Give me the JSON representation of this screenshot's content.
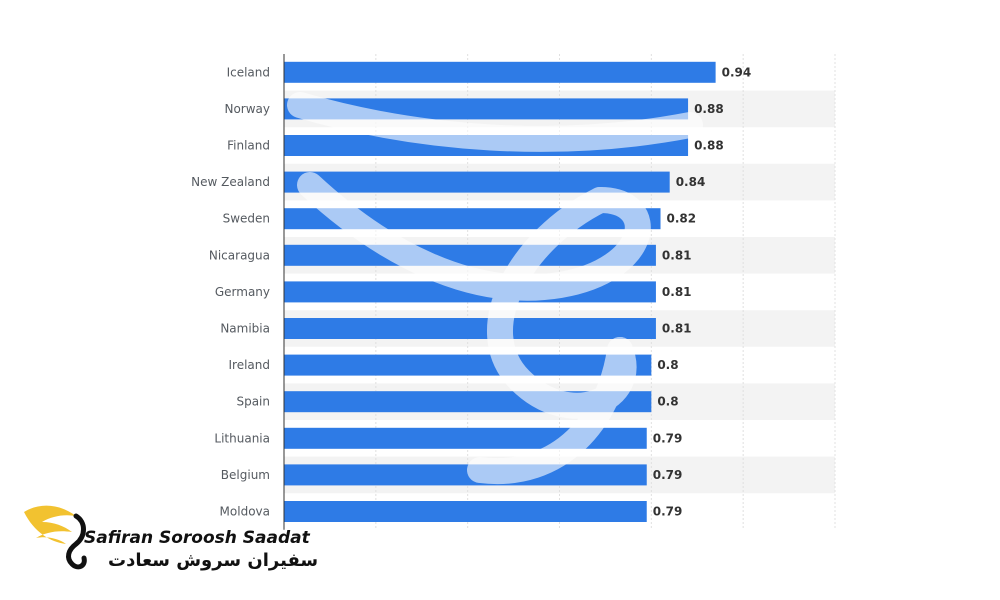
{
  "chart_data": {
    "type": "bar",
    "orientation": "horizontal",
    "categories": [
      "Iceland",
      "Norway",
      "Finland",
      "New Zealand",
      "Sweden",
      "Nicaragua",
      "Germany",
      "Namibia",
      "Ireland",
      "Spain",
      "Lithuania",
      "Belgium",
      "Moldova"
    ],
    "values": [
      0.94,
      0.88,
      0.88,
      0.84,
      0.82,
      0.81,
      0.81,
      0.81,
      0.8,
      0.8,
      0.79,
      0.79,
      0.79
    ],
    "value_labels": [
      "0.94",
      "0.88",
      "0.88",
      "0.84",
      "0.82",
      "0.81",
      "0.81",
      "0.81",
      "0.8",
      "0.8",
      "0.79",
      "0.79",
      "0.79"
    ],
    "title": "",
    "xlabel": "",
    "ylabel": "",
    "xlim": [
      0,
      1.2
    ],
    "grid": true,
    "bar_color": "#2e7be6",
    "band_color": "#f3f3f3"
  },
  "watermark": {
    "brand_en": "Safiran Soroosh Saadat",
    "brand_fa": "سفیران سروش سعادت",
    "accent_color": "#f2c230"
  }
}
